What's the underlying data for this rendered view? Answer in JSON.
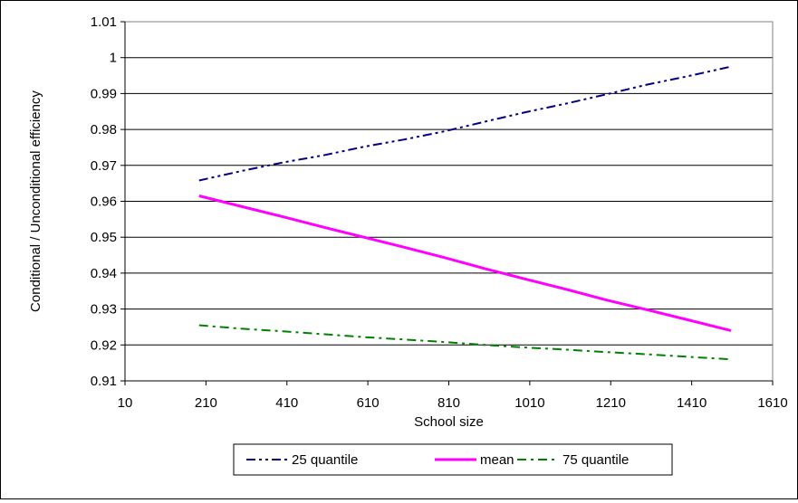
{
  "chart_data": {
    "type": "line",
    "title": "",
    "xlabel": "School size",
    "ylabel": "Conditional / Unconditional efficiency",
    "xlim": [
      10,
      1610
    ],
    "ylim": [
      0.91,
      1.01
    ],
    "xticks": [
      "10",
      "210",
      "410",
      "610",
      "810",
      "1010",
      "1210",
      "1410",
      "1610"
    ],
    "yticks": [
      "0.91",
      "0.92",
      "0.93",
      "0.94",
      "0.95",
      "0.96",
      "0.97",
      "0.98",
      "0.99",
      "1",
      "1.01"
    ],
    "grid": "horizontal",
    "legend_position": "bottom",
    "series": [
      {
        "name": "25 quantile",
        "color": "#000080",
        "dash": "dash-dot-dot",
        "x": [
          193,
          300,
          400,
          500,
          600,
          700,
          800,
          900,
          1000,
          1100,
          1200,
          1300,
          1400,
          1507
        ],
        "y": [
          0.9658,
          0.9685,
          0.9708,
          0.9728,
          0.9752,
          0.9772,
          0.9795,
          0.9822,
          0.9848,
          0.9872,
          0.9898,
          0.9925,
          0.9948,
          0.9975
        ]
      },
      {
        "name": "mean",
        "color": "#ff00ff",
        "dash": "solid",
        "x": [
          193,
          300,
          400,
          500,
          600,
          700,
          800,
          900,
          1000,
          1100,
          1200,
          1300,
          1400,
          1507
        ],
        "y": [
          0.9615,
          0.9585,
          0.9557,
          0.9528,
          0.95,
          0.9472,
          0.9443,
          0.9412,
          0.9383,
          0.9355,
          0.9325,
          0.9298,
          0.927,
          0.924
        ]
      },
      {
        "name": "75 quantile",
        "color": "#008000",
        "dash": "dash-dot",
        "x": [
          193,
          300,
          400,
          500,
          600,
          700,
          800,
          900,
          1000,
          1100,
          1200,
          1300,
          1400,
          1507
        ],
        "y": [
          0.9255,
          0.9245,
          0.9238,
          0.923,
          0.9222,
          0.9215,
          0.9208,
          0.92,
          0.9193,
          0.9187,
          0.918,
          0.9174,
          0.9167,
          0.916
        ]
      }
    ]
  }
}
